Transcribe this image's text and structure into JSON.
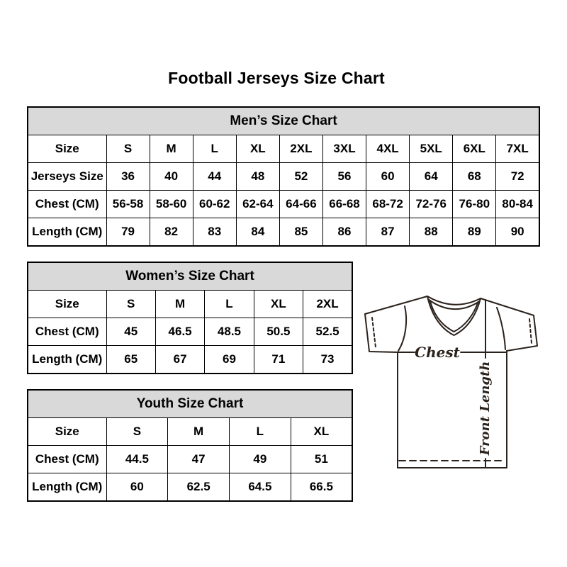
{
  "page_title": "Football Jerseys Size Chart",
  "colors": {
    "table_header_bg": "#d9d9d9",
    "table_border": "#000000",
    "text": "#000000",
    "jersey_line": "#2b221c"
  },
  "chart_data": [
    {
      "type": "table",
      "title": "Men’s Size Chart",
      "columns": [
        "Size",
        "S",
        "M",
        "L",
        "XL",
        "2XL",
        "3XL",
        "4XL",
        "5XL",
        "6XL",
        "7XL"
      ],
      "rows": [
        [
          "Jerseys Size",
          "36",
          "40",
          "44",
          "48",
          "52",
          "56",
          "60",
          "64",
          "68",
          "72"
        ],
        [
          "Chest (CM)",
          "56-58",
          "58-60",
          "60-62",
          "62-64",
          "64-66",
          "66-68",
          "68-72",
          "72-76",
          "76-80",
          "80-84"
        ],
        [
          "Length (CM)",
          "79",
          "82",
          "83",
          "84",
          "85",
          "86",
          "87",
          "88",
          "89",
          "90"
        ]
      ]
    },
    {
      "type": "table",
      "title": "Women’s Size Chart",
      "columns": [
        "Size",
        "S",
        "M",
        "L",
        "XL",
        "2XL"
      ],
      "rows": [
        [
          "Chest (CM)",
          "45",
          "46.5",
          "48.5",
          "50.5",
          "52.5"
        ],
        [
          "Length (CM)",
          "65",
          "67",
          "69",
          "71",
          "73"
        ]
      ]
    },
    {
      "type": "table",
      "title": "Youth Size Chart",
      "columns": [
        "Size",
        "S",
        "M",
        "L",
        "XL"
      ],
      "rows": [
        [
          "Chest (CM)",
          "44.5",
          "47",
          "49",
          "51"
        ],
        [
          "Length (CM)",
          "60",
          "62.5",
          "64.5",
          "66.5"
        ]
      ]
    }
  ],
  "diagram": {
    "chest_label": "Chest",
    "front_length_label": "Front Length"
  }
}
